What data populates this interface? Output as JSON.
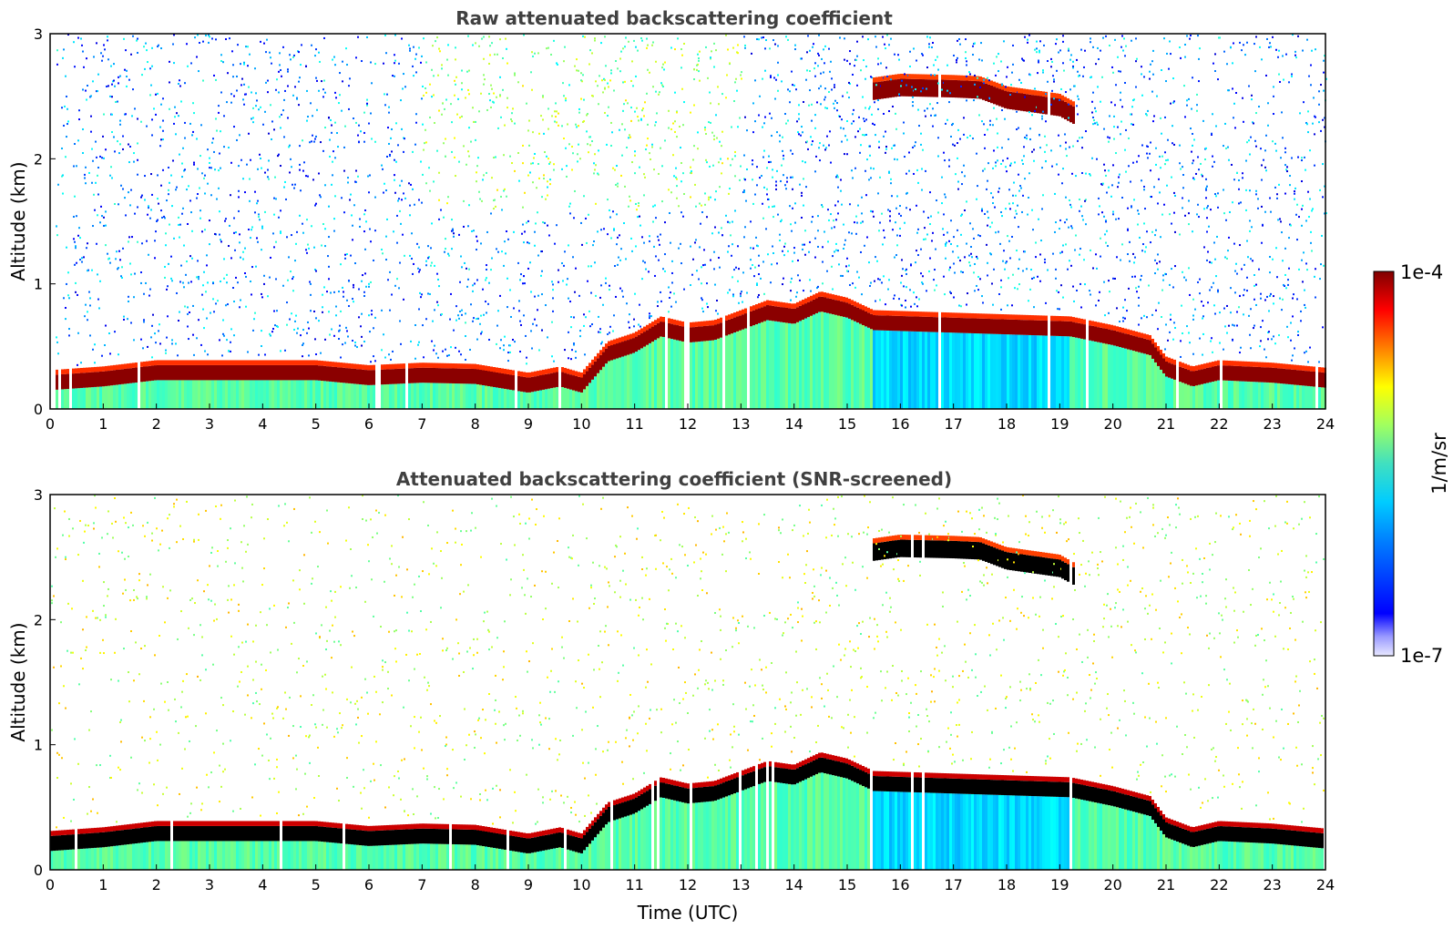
{
  "chart_data": [
    {
      "type": "heatmap",
      "title": "Raw attenuated backscattering coefficient",
      "xlabel": "",
      "ylabel": "Altitude (km)",
      "xlim": [
        0,
        24
      ],
      "ylim": [
        0,
        3
      ],
      "xticks": [
        "0",
        "1",
        "2",
        "3",
        "4",
        "5",
        "6",
        "7",
        "8",
        "9",
        "10",
        "11",
        "12",
        "13",
        "14",
        "15",
        "16",
        "17",
        "18",
        "19",
        "20",
        "21",
        "22",
        "23",
        "24"
      ],
      "yticks": [
        "0",
        "1",
        "2",
        "3"
      ],
      "screened": false
    },
    {
      "type": "heatmap",
      "title": "Attenuated backscattering coefficient (SNR-screened)",
      "xlabel": "Time (UTC)",
      "ylabel": "Altitude (km)",
      "xlim": [
        0,
        24
      ],
      "ylim": [
        0,
        3
      ],
      "xticks": [
        "0",
        "1",
        "2",
        "3",
        "4",
        "5",
        "6",
        "7",
        "8",
        "9",
        "10",
        "11",
        "12",
        "13",
        "14",
        "15",
        "16",
        "17",
        "18",
        "19",
        "20",
        "21",
        "22",
        "23",
        "24"
      ],
      "yticks": [
        "0",
        "1",
        "2",
        "3"
      ],
      "screened": true
    }
  ],
  "colorbar": {
    "label": "1/m/sr",
    "max_label": "1e-4",
    "min_label": "1e-7",
    "colormap": "jet"
  },
  "layers": {
    "boundary_layer_top_km": [
      [
        0,
        0.22
      ],
      [
        1,
        0.25
      ],
      [
        2,
        0.3
      ],
      [
        3,
        0.3
      ],
      [
        4,
        0.3
      ],
      [
        5,
        0.3
      ],
      [
        6,
        0.26
      ],
      [
        7,
        0.28
      ],
      [
        8,
        0.27
      ],
      [
        9,
        0.2
      ],
      [
        9.6,
        0.25
      ],
      [
        10,
        0.2
      ],
      [
        10.5,
        0.45
      ],
      [
        11,
        0.52
      ],
      [
        11.5,
        0.65
      ],
      [
        12,
        0.6
      ],
      [
        12.5,
        0.62
      ],
      [
        13,
        0.7
      ],
      [
        13.5,
        0.78
      ],
      [
        14,
        0.75
      ],
      [
        14.5,
        0.85
      ],
      [
        15,
        0.8
      ],
      [
        15.5,
        0.7
      ],
      [
        19.2,
        0.65
      ],
      [
        20,
        0.58
      ],
      [
        20.7,
        0.5
      ],
      [
        21,
        0.33
      ],
      [
        21.5,
        0.25
      ],
      [
        22,
        0.3
      ],
      [
        23,
        0.28
      ],
      [
        24,
        0.24
      ]
    ],
    "upper_cloud_km": [
      [
        15.5,
        2.55
      ],
      [
        16,
        2.58
      ],
      [
        17,
        2.57
      ],
      [
        17.5,
        2.56
      ],
      [
        18,
        2.48
      ],
      [
        19,
        2.42
      ],
      [
        19.3,
        2.35
      ]
    ]
  }
}
